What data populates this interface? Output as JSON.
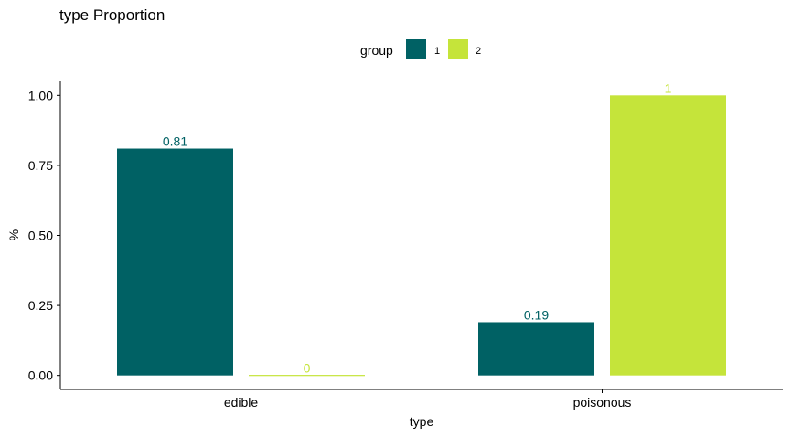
{
  "chart_data": {
    "type": "bar",
    "title": "type Proportion",
    "xlabel": "type",
    "ylabel": "%",
    "categories": [
      "edible",
      "poisonous"
    ],
    "series": [
      {
        "name": "1",
        "values": [
          0.81,
          0.19
        ],
        "labels": [
          "0.81",
          "0.19"
        ],
        "color": "#006164"
      },
      {
        "name": "2",
        "values": [
          0,
          1
        ],
        "labels": [
          "0",
          "1"
        ],
        "color": "#c5e43a"
      }
    ],
    "ylim": [
      -0.05,
      1.05
    ],
    "yticks": [
      0.0,
      0.25,
      0.5,
      0.75,
      1.0
    ],
    "ytick_labels": [
      "0.00",
      "0.25",
      "0.50",
      "0.75",
      "1.00"
    ],
    "legend": {
      "title": "group",
      "position": "top",
      "entries": [
        "1",
        "2"
      ]
    },
    "grid": false
  }
}
